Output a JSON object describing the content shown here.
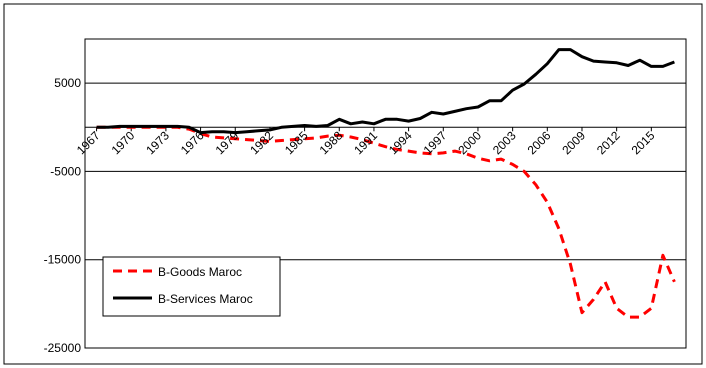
{
  "chart_data": {
    "type": "line",
    "title": "",
    "xlabel": "",
    "ylabel": "",
    "x": [
      1967,
      1968,
      1969,
      1970,
      1971,
      1972,
      1973,
      1974,
      1975,
      1976,
      1977,
      1978,
      1979,
      1980,
      1981,
      1982,
      1983,
      1984,
      1985,
      1986,
      1987,
      1988,
      1989,
      1990,
      1991,
      1992,
      1993,
      1994,
      1995,
      1996,
      1997,
      1998,
      1999,
      2000,
      2001,
      2002,
      2003,
      2004,
      2005,
      2006,
      2007,
      2008,
      2009,
      2010,
      2011,
      2012,
      2013,
      2014,
      2015,
      2016,
      2017
    ],
    "x_tick_labels": [
      "1967",
      "1970",
      "1973",
      "1976",
      "1979",
      "1982",
      "1985",
      "1988",
      "1991",
      "1994",
      "1997",
      "2000",
      "2003",
      "2006",
      "2009",
      "2012",
      "2015"
    ],
    "x_tick_values": [
      1967,
      1970,
      1973,
      1976,
      1979,
      1982,
      1985,
      1988,
      1991,
      1994,
      1997,
      2000,
      2003,
      2006,
      2009,
      2012,
      2015
    ],
    "y_ticks": [
      5000,
      -5000,
      -15000,
      -25000
    ],
    "ylim": [
      -25000,
      10000
    ],
    "grid": "horizontal",
    "legend_position": "lower-left",
    "series": [
      {
        "name": "B-Goods Maroc",
        "color": "#ff0000",
        "style": "dashed",
        "values": [
          0,
          0,
          0,
          0,
          0,
          0,
          0,
          0,
          -200,
          -700,
          -1100,
          -1200,
          -1300,
          -1400,
          -1500,
          -1600,
          -1500,
          -1400,
          -1300,
          -1200,
          -1000,
          -900,
          -1100,
          -1400,
          -1800,
          -2200,
          -2500,
          -2700,
          -2900,
          -3000,
          -2900,
          -2700,
          -3000,
          -3500,
          -3800,
          -3600,
          -4200,
          -5000,
          -6500,
          -8500,
          -11500,
          -15500,
          -21000,
          -19500,
          -17500,
          -20500,
          -21500,
          -21500,
          -20500,
          -14500,
          -17500
        ]
      },
      {
        "name": "B-Services Maroc",
        "color": "#000000",
        "style": "solid",
        "values": [
          0,
          0,
          100,
          100,
          100,
          100,
          100,
          100,
          0,
          -600,
          -500,
          -500,
          -600,
          -500,
          -400,
          -300,
          0,
          100,
          200,
          100,
          200,
          900,
          400,
          600,
          400,
          900,
          900,
          700,
          1000,
          1700,
          1500,
          1800,
          2100,
          2300,
          3000,
          3000,
          4200,
          4900,
          6000,
          7200,
          8800,
          8800,
          8000,
          7500,
          7400,
          7300,
          7000,
          7600,
          6900,
          6900,
          7400
        ]
      }
    ]
  }
}
